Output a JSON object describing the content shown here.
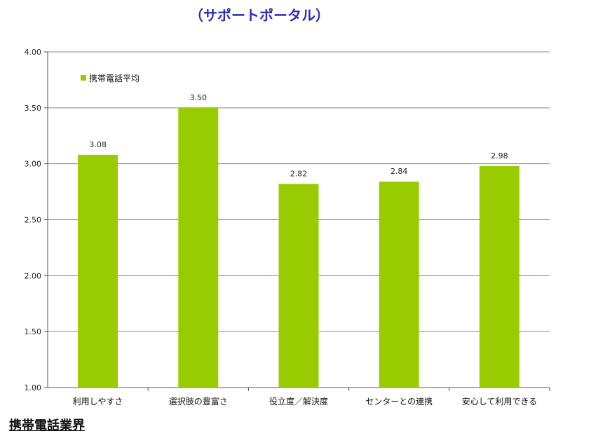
{
  "page": {
    "title": "（サポートポータル）",
    "footer": "携帯電話業界"
  },
  "chart_data": {
    "type": "bar",
    "categories": [
      "利用しやすさ",
      "選択肢の豊富さ",
      "役立度／解決度",
      "センターとの連携",
      "安心して利用できる"
    ],
    "series": [
      {
        "name": "携帯電話平均",
        "values": [
          3.08,
          3.5,
          2.82,
          2.84,
          2.98
        ],
        "color": "#99cc00"
      }
    ],
    "data_labels": [
      "3.08",
      "3.50",
      "2.82",
      "2.84",
      "2.98"
    ],
    "ylim": [
      1.0,
      4.0
    ],
    "yticks": [
      "1.00",
      "1.50",
      "2.00",
      "2.50",
      "3.00",
      "3.50",
      "4.00"
    ],
    "ytick_values": [
      1.0,
      1.5,
      2.0,
      2.5,
      3.0,
      3.5,
      4.0
    ],
    "grid": true,
    "legend": "top-left"
  }
}
